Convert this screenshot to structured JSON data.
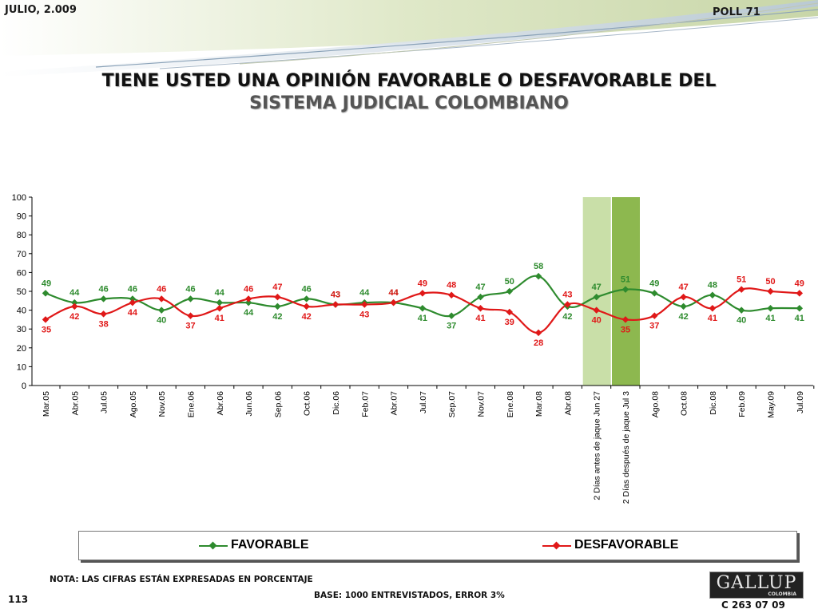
{
  "header": {
    "date": "JULIO, 2.009",
    "poll": "POLL 71"
  },
  "title": {
    "line1": "TIENE USTED UNA OPINIÓN FAVORABLE O DESFAVORABLE DEL",
    "line2": "SISTEMA JUDICIAL COLOMBIANO"
  },
  "legend": {
    "favorable": "FAVORABLE",
    "desfavorable": "DESFAVORABLE"
  },
  "footer": {
    "note": "NOTA: LAS CIFRAS ESTÁN EXPRESADAS EN PORCENTAJE",
    "base": "BASE: 1000 ENTREVISTADOS, ERROR 3%",
    "page_number": "113",
    "code": "C 263 07 09",
    "logo": "GALLUP",
    "logo_sub": "COLOMBIA"
  },
  "colors": {
    "favorable": "#2e8b2e",
    "desfavorable": "#e01818",
    "highlight_before": "#c9dfa8",
    "highlight_after": "#8db84f"
  },
  "chart_data": {
    "type": "line",
    "categories": [
      "Mar.05",
      "Abr.05",
      "Jul.05",
      "Ago.05",
      "Nov.05",
      "Ene.06",
      "Abr.06",
      "Jun.06",
      "Sep.06",
      "Oct.06",
      "Dic.06",
      "Feb.07",
      "Abr.07",
      "Jul.07",
      "Sep.07",
      "Nov.07",
      "Ene.08",
      "Mar.08",
      "Abr.08",
      "2 Días antes de jaque Jun 27",
      "2 Días después de jaque Jul 3",
      "Ago.08",
      "Oct.08",
      "Dic.08",
      "Feb.09",
      "May.09",
      "Jul.09"
    ],
    "series": [
      {
        "name": "FAVORABLE",
        "values": [
          49,
          44,
          46,
          46,
          40,
          46,
          44,
          44,
          42,
          46,
          43,
          44,
          44,
          41,
          37,
          47,
          50,
          58,
          42,
          47,
          51,
          49,
          42,
          48,
          40,
          41,
          41
        ]
      },
      {
        "name": "DESFAVORABLE",
        "values": [
          35,
          42,
          38,
          44,
          46,
          37,
          41,
          46,
          47,
          42,
          43,
          43,
          44,
          49,
          48,
          41,
          39,
          28,
          43,
          40,
          35,
          37,
          47,
          41,
          51,
          50,
          49
        ]
      }
    ],
    "highlighted_categories": [
      "2 Días antes de jaque Jun 27",
      "2 Días después de jaque Jul 3"
    ],
    "yticks": [
      "0",
      "10",
      "20",
      "30",
      "40",
      "50",
      "60",
      "70",
      "80",
      "90",
      "100"
    ],
    "ylim": [
      0,
      100
    ],
    "grid": false,
    "legend": "bottom"
  }
}
